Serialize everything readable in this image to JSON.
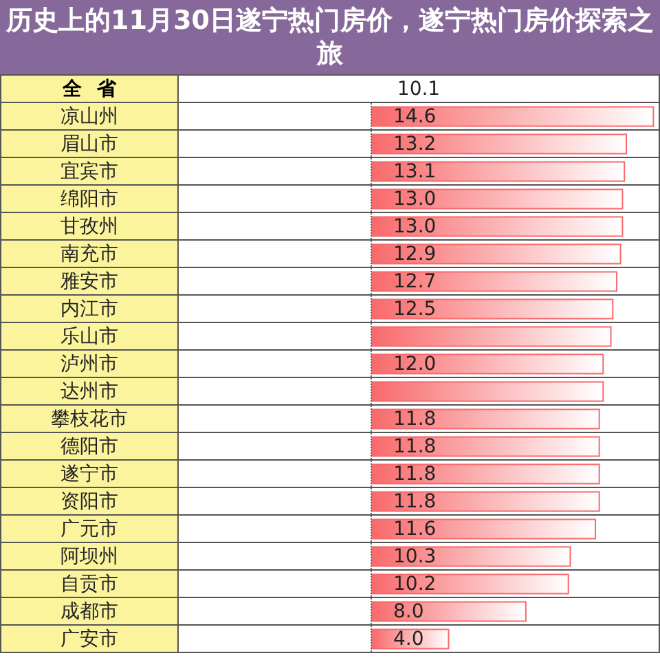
{
  "chart_data": {
    "type": "bar",
    "orientation": "horizontal",
    "title": "历史上的11月30日遂宁热门房价，遂宁热门房价探索之旅",
    "categories": [
      "凉山州",
      "眉山市",
      "宜宾市",
      "绵阳市",
      "甘孜州",
      "南充市",
      "雅安市",
      "内江市",
      "乐山市",
      "泸州市",
      "达州市",
      "攀枝花市",
      "德阳市",
      "遂宁市",
      "资阳市",
      "广元市",
      "阿坝州",
      "自贡市",
      "成都市",
      "广安市"
    ],
    "values": [
      14.6,
      13.2,
      13.1,
      13.0,
      13.0,
      12.9,
      12.7,
      12.5,
      12.4,
      12.0,
      12.0,
      11.8,
      11.8,
      11.8,
      11.8,
      11.6,
      10.3,
      10.2,
      8.0,
      4.0
    ],
    "value_labels": [
      "14.6",
      "13.2",
      "13.1",
      "13.0",
      "13.0",
      "12.9",
      "12.7",
      "12.5",
      null,
      "12.0",
      null,
      "11.8",
      "11.8",
      "11.8",
      "11.8",
      "11.6",
      "10.3",
      "10.2",
      "8.0",
      "4.0"
    ],
    "color": "#f8696b",
    "xlim": [
      0,
      14.8
    ],
    "tick_labels": "y",
    "annotations": [
      "全省",
      "10.1"
    ]
  }
}
